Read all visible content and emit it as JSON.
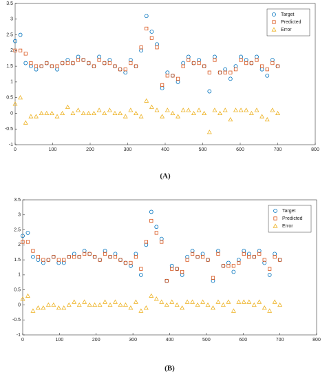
{
  "chart_data": [
    {
      "type": "scatter",
      "caption": "(A)",
      "x": [
        0,
        14,
        28,
        42,
        56,
        70,
        84,
        98,
        112,
        126,
        140,
        154,
        168,
        182,
        196,
        210,
        224,
        238,
        252,
        266,
        280,
        294,
        308,
        322,
        336,
        350,
        364,
        378,
        392,
        406,
        420,
        434,
        448,
        462,
        476,
        490,
        504,
        518,
        532,
        546,
        560,
        574,
        588,
        602,
        616,
        630,
        644,
        658,
        672,
        686,
        700
      ],
      "series": [
        {
          "name": "Target",
          "color": "#0072bd",
          "marker": "circle",
          "values": [
            2.3,
            2.5,
            1.6,
            1.5,
            1.4,
            1.5,
            1.6,
            1.5,
            1.4,
            1.6,
            1.7,
            1.6,
            1.8,
            1.7,
            1.6,
            1.5,
            1.8,
            1.6,
            1.7,
            1.5,
            1.4,
            1.3,
            1.7,
            1.5,
            2.0,
            3.1,
            2.6,
            2.2,
            0.8,
            1.3,
            1.2,
            1.0,
            1.6,
            1.8,
            1.6,
            1.7,
            1.5,
            0.7,
            1.8,
            1.3,
            1.4,
            1.1,
            1.5,
            1.8,
            1.7,
            1.6,
            1.8,
            1.4,
            1.2,
            1.7,
            1.5
          ]
        },
        {
          "name": "Predicted",
          "color": "#d95319",
          "marker": "square",
          "values": [
            2.0,
            2.0,
            1.9,
            1.6,
            1.5,
            1.5,
            1.6,
            1.5,
            1.5,
            1.6,
            1.6,
            1.6,
            1.7,
            1.7,
            1.6,
            1.5,
            1.7,
            1.6,
            1.6,
            1.5,
            1.4,
            1.4,
            1.6,
            1.5,
            2.1,
            2.7,
            2.4,
            2.1,
            0.9,
            1.2,
            1.2,
            1.1,
            1.5,
            1.7,
            1.6,
            1.6,
            1.5,
            1.3,
            1.7,
            1.3,
            1.3,
            1.3,
            1.4,
            1.7,
            1.6,
            1.6,
            1.7,
            1.5,
            1.4,
            1.6,
            1.5
          ]
        },
        {
          "name": "Error",
          "color": "#edb120",
          "marker": "triangle",
          "values": [
            0.3,
            0.5,
            -0.3,
            -0.1,
            -0.1,
            0.0,
            0.0,
            0.0,
            -0.1,
            0.0,
            0.2,
            0.0,
            0.1,
            0.0,
            0.0,
            0.0,
            0.1,
            0.0,
            0.1,
            0.0,
            0.0,
            -0.1,
            0.1,
            0.0,
            -0.1,
            0.4,
            0.2,
            0.1,
            -0.1,
            0.1,
            0.0,
            -0.1,
            0.1,
            0.1,
            0.0,
            0.1,
            0.0,
            -0.6,
            0.1,
            0.0,
            0.1,
            -0.2,
            0.1,
            0.1,
            0.1,
            0.0,
            0.1,
            -0.1,
            -0.2,
            0.1,
            0.0
          ]
        }
      ],
      "xlim": [
        0,
        800
      ],
      "xticks": [
        0,
        100,
        200,
        300,
        400,
        500,
        600,
        700,
        800
      ],
      "ylim": [
        -1,
        3.5
      ],
      "yticks": [
        -1,
        -0.5,
        0,
        0.5,
        1,
        1.5,
        2,
        2.5,
        3,
        3.5
      ],
      "legend": "upper right"
    },
    {
      "type": "scatter",
      "caption": "(B)",
      "x": [
        0,
        14,
        28,
        42,
        56,
        70,
        84,
        98,
        112,
        126,
        140,
        154,
        168,
        182,
        196,
        210,
        224,
        238,
        252,
        266,
        280,
        294,
        308,
        322,
        336,
        350,
        364,
        378,
        392,
        406,
        420,
        434,
        448,
        462,
        476,
        490,
        504,
        518,
        532,
        546,
        560,
        574,
        588,
        602,
        616,
        630,
        644,
        658,
        672,
        686,
        700
      ],
      "series": [
        {
          "name": "Target",
          "color": "#0072bd",
          "marker": "circle",
          "values": [
            2.3,
            2.4,
            1.6,
            1.5,
            1.4,
            1.5,
            1.6,
            1.4,
            1.4,
            1.6,
            1.7,
            1.6,
            1.8,
            1.7,
            1.6,
            1.5,
            1.8,
            1.6,
            1.7,
            1.5,
            1.4,
            1.3,
            1.7,
            1.0,
            2.0,
            3.1,
            2.6,
            2.2,
            0.8,
            1.3,
            1.2,
            1.0,
            1.6,
            1.8,
            1.6,
            1.7,
            1.5,
            0.8,
            1.8,
            1.3,
            1.4,
            1.1,
            1.5,
            1.8,
            1.7,
            1.6,
            1.8,
            1.4,
            1.0,
            1.7,
            1.5
          ]
        },
        {
          "name": "Predicted",
          "color": "#d95319",
          "marker": "square",
          "values": [
            2.1,
            2.1,
            1.8,
            1.6,
            1.5,
            1.5,
            1.6,
            1.5,
            1.5,
            1.6,
            1.6,
            1.6,
            1.7,
            1.7,
            1.6,
            1.5,
            1.7,
            1.6,
            1.6,
            1.5,
            1.4,
            1.4,
            1.6,
            1.2,
            2.1,
            2.8,
            2.4,
            2.1,
            0.8,
            1.2,
            1.2,
            1.1,
            1.5,
            1.7,
            1.6,
            1.6,
            1.5,
            0.9,
            1.7,
            1.3,
            1.3,
            1.3,
            1.4,
            1.7,
            1.6,
            1.6,
            1.7,
            1.5,
            1.2,
            1.6,
            1.5
          ]
        },
        {
          "name": "Error",
          "color": "#edb120",
          "marker": "triangle",
          "values": [
            0.2,
            0.3,
            -0.2,
            -0.1,
            -0.1,
            0.0,
            0.0,
            -0.1,
            -0.1,
            0.0,
            0.1,
            0.0,
            0.1,
            0.0,
            0.0,
            0.0,
            0.1,
            0.0,
            0.1,
            0.0,
            0.0,
            -0.1,
            0.1,
            -0.2,
            -0.1,
            0.3,
            0.2,
            0.1,
            0.0,
            0.1,
            0.0,
            -0.1,
            0.1,
            0.1,
            0.0,
            0.1,
            0.0,
            -0.1,
            0.1,
            0.0,
            0.1,
            -0.2,
            0.1,
            0.1,
            0.1,
            0.0,
            0.1,
            -0.1,
            -0.2,
            0.1,
            0.0
          ]
        }
      ],
      "xlim": [
        0,
        800
      ],
      "xticks": [
        0,
        100,
        200,
        300,
        400,
        500,
        600,
        700,
        800
      ],
      "ylim": [
        -1,
        3.5
      ],
      "yticks": [
        -1,
        -0.5,
        0,
        0.5,
        1,
        1.5,
        2,
        2.5,
        3,
        3.5
      ],
      "legend": "upper right"
    }
  ]
}
